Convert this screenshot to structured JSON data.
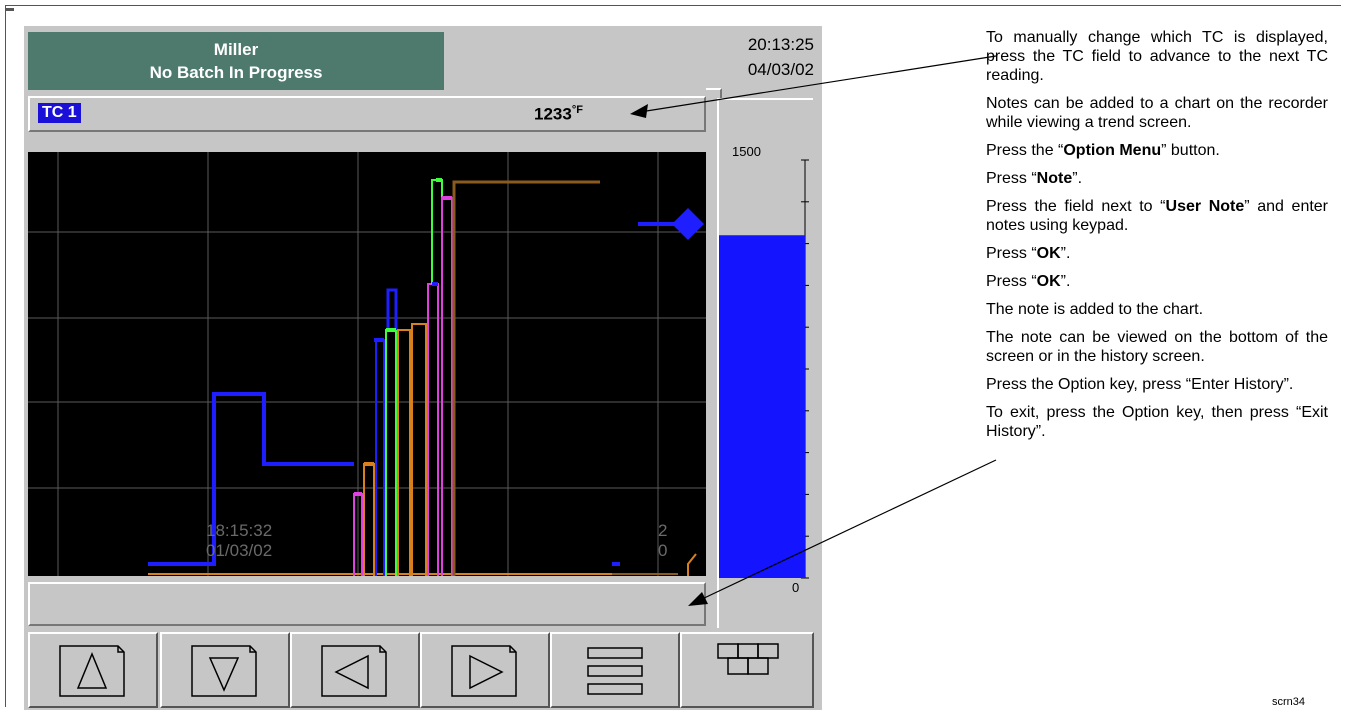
{
  "header": {
    "recorder_name": "Miller",
    "batch_status": "No Batch In Progress",
    "time": "20:13:25",
    "date": "04/03/02"
  },
  "tc_bar": {
    "tc_label": "TC 1",
    "reading": "1233",
    "unit": "°F"
  },
  "chart": {
    "time_label": "18:15:32",
    "date_label": "01/03/02",
    "right_label_top": "2",
    "right_label_bottom": "0"
  },
  "scale": {
    "max": "1500",
    "min": "0",
    "fill_fraction": 0.82,
    "fill_color": "#1414ff"
  },
  "note_bar": {
    "text": ""
  },
  "buttons": [
    {
      "name": "up-arrow-icon"
    },
    {
      "name": "down-arrow-icon"
    },
    {
      "name": "left-arrow-icon"
    },
    {
      "name": "right-arrow-icon"
    },
    {
      "name": "menu-lines-icon"
    },
    {
      "name": "grid-blocks-icon"
    }
  ],
  "instructions": {
    "p1": "To manually change which TC is displayed, press the TC field to advance to the next TC reading.",
    "p2": "Notes can be added to a chart on the recorder while viewing a trend screen.",
    "p3_pre": "Press the “",
    "p3_bold": "Option Menu",
    "p3_post": "” button.",
    "p4_pre": "Press “",
    "p4_bold": "Note",
    "p4_post": "”.",
    "p5_pre": "Press the field next to “",
    "p5_bold": "User Note",
    "p5_post": "” and enter notes using keypad.",
    "p6_pre": "Press “",
    "p6_bold": "OK",
    "p6_post": "”.",
    "p7_pre": "Press “",
    "p7_bold": "OK",
    "p7_post": "”.",
    "p8": "The note is added to the chart.",
    "p9": "The note can be viewed on the bottom of the screen or in the history screen.",
    "p10": "Press the Option key, press “Enter History”.",
    "p11": "To exit, press the Option key, then press “Exit History”."
  },
  "footnote": "scrn34",
  "colors": {
    "header_bg": "#4e7a6e",
    "tc_label_bg": "#1a10d8",
    "chart_bg": "#000000",
    "trace_blue": "#1e1eff",
    "trace_orange": "#d9801e",
    "trace_green": "#3cff3c",
    "trace_magenta": "#e040e0",
    "trace_brown": "#8a5a1e"
  }
}
